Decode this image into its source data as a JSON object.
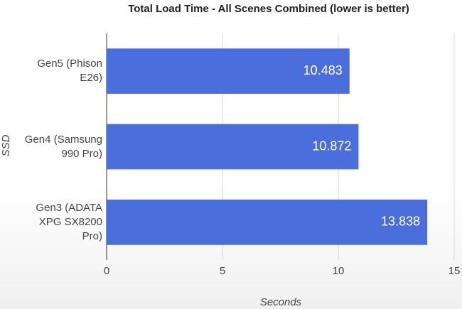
{
  "chart_data": {
    "type": "bar",
    "orientation": "horizontal",
    "title": "Total Load Time - All Scenes Combined (lower is better)",
    "x_label": "Seconds",
    "y_label": "SSD",
    "categories": [
      "Gen5 (Phison E26)",
      "Gen4 (Samsung 990 Pro)",
      "Gen3 (ADATA XPG SX8200 Pro)"
    ],
    "values": [
      10.483,
      10.872,
      13.838
    ],
    "color": "#4a6fdc",
    "xlim": [
      0,
      15
    ],
    "xticks": [
      0,
      5,
      10,
      15
    ],
    "grid": true
  }
}
